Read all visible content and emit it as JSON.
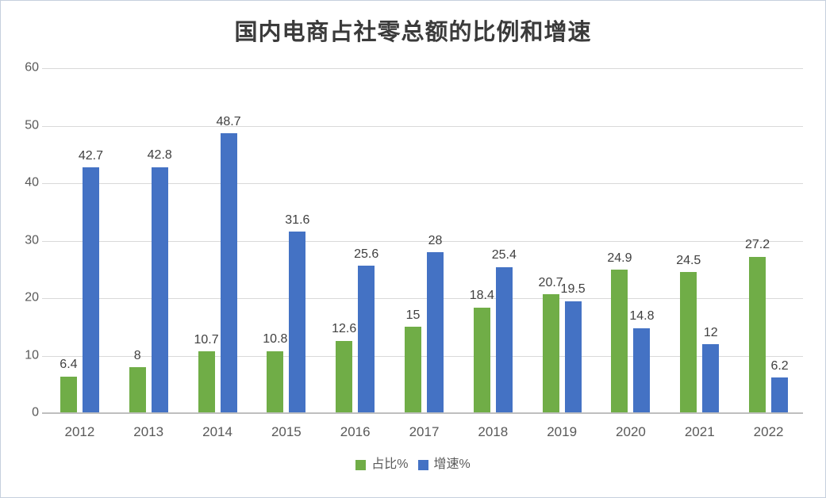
{
  "frame": {
    "background": "#FFFFFF",
    "border_color": "#C6D0DE"
  },
  "chart_data": {
    "type": "bar",
    "title": "国内电商占社零总额的比例和增速",
    "categories": [
      "2012",
      "2013",
      "2014",
      "2015",
      "2016",
      "2017",
      "2018",
      "2019",
      "2020",
      "2021",
      "2022"
    ],
    "series": [
      {
        "name": "占比%",
        "color": "#70AD47",
        "values": [
          6.4,
          8,
          10.7,
          10.8,
          12.6,
          15,
          18.4,
          20.7,
          24.9,
          24.5,
          27.2
        ]
      },
      {
        "name": "增速%",
        "color": "#4472C4",
        "values": [
          42.7,
          42.8,
          48.7,
          31.6,
          25.6,
          28,
          25.4,
          19.5,
          14.8,
          12,
          6.2
        ]
      }
    ],
    "xlabel": "",
    "ylabel": "",
    "ylim": [
      0,
      60
    ],
    "yticks": [
      0,
      10,
      20,
      30,
      40,
      50,
      60
    ],
    "grid": true,
    "data_labels": true,
    "legend_position": "bottom",
    "colors": {
      "gridline": "#D9D9D9",
      "axis_line": "#BFBFBF",
      "axis_text": "#595959",
      "data_label_text": "#404040",
      "title_text": "#3B3B3B"
    }
  }
}
